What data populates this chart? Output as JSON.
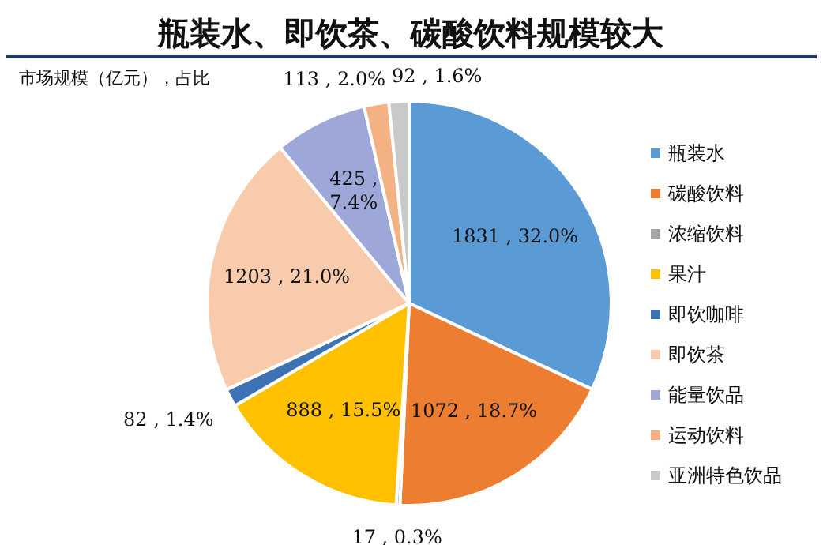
{
  "chart_data": {
    "type": "pie",
    "title": "瓶装水、即饮茶、碳酸饮料规模较大",
    "annotations": [
      "市场规模（亿元），占比"
    ],
    "categories": [
      "瓶装水",
      "碳酸饮料",
      "浓缩饮料",
      "果汁",
      "即饮咖啡",
      "即饮茶",
      "能量饮品",
      "运动饮料",
      "亚洲特色饮品"
    ],
    "values": [
      1831,
      1072,
      17,
      888,
      82,
      1203,
      425,
      113,
      92
    ],
    "value_labels": [
      "1831 , 32.0%",
      "1072 , 18.7%",
      "17 , 0.3%",
      "888 , 15.5%",
      "82 , 1.4%",
      "1203 , 21.0%",
      "425 , 7.4%",
      "113 , 2.0%",
      "92 , 1.6%"
    ],
    "colors": [
      "#5b9bd5",
      "#ed7d31",
      "#a5a5a5",
      "#ffc000",
      "#3d73b5",
      "#f8cbad",
      "#9ea8d8",
      "#f4b183",
      "#c9c9c9"
    ],
    "legend": "right"
  }
}
